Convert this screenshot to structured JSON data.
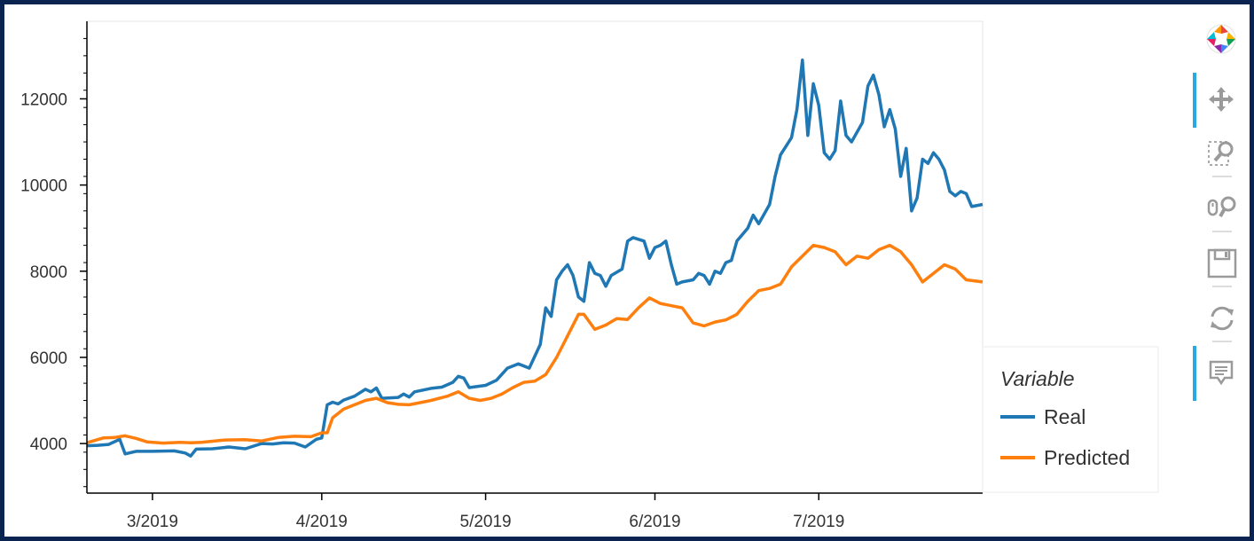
{
  "chart_data": {
    "type": "line",
    "x_dates": [
      "2019-02-17",
      "2019-07-31"
    ],
    "xticks": [
      {
        "date": "2019-03-01",
        "label": "3/2019"
      },
      {
        "date": "2019-04-01",
        "label": "4/2019"
      },
      {
        "date": "2019-05-01",
        "label": "5/2019"
      },
      {
        "date": "2019-06-01",
        "label": "6/2019"
      },
      {
        "date": "2019-07-01",
        "label": "7/2019"
      }
    ],
    "yticks": [
      4000,
      6000,
      8000,
      10000,
      12000
    ],
    "ylim": [
      2850,
      13800
    ],
    "grid": false,
    "legend": {
      "title": "Variable",
      "placement": "bottom-right-outside"
    },
    "series": [
      {
        "name": "Real",
        "color": "#1f77b4",
        "points": [
          [
            "2019-02-17",
            3950
          ],
          [
            "2019-02-19",
            3960
          ],
          [
            "2019-02-21",
            3980
          ],
          [
            "2019-02-23",
            4100
          ],
          [
            "2019-02-24",
            3760
          ],
          [
            "2019-02-26",
            3820
          ],
          [
            "2019-03-01",
            3820
          ],
          [
            "2019-03-05",
            3830
          ],
          [
            "2019-03-07",
            3780
          ],
          [
            "2019-03-08",
            3710
          ],
          [
            "2019-03-09",
            3870
          ],
          [
            "2019-03-12",
            3880
          ],
          [
            "2019-03-15",
            3920
          ],
          [
            "2019-03-18",
            3880
          ],
          [
            "2019-03-21",
            4000
          ],
          [
            "2019-03-23",
            3990
          ],
          [
            "2019-03-25",
            4020
          ],
          [
            "2019-03-27",
            4010
          ],
          [
            "2019-03-29",
            3920
          ],
          [
            "2019-03-31",
            4100
          ],
          [
            "2019-04-01",
            4130
          ],
          [
            "2019-04-02",
            4900
          ],
          [
            "2019-04-03",
            4960
          ],
          [
            "2019-04-04",
            4920
          ],
          [
            "2019-04-05",
            5010
          ],
          [
            "2019-04-07",
            5100
          ],
          [
            "2019-04-09",
            5260
          ],
          [
            "2019-04-10",
            5200
          ],
          [
            "2019-04-11",
            5290
          ],
          [
            "2019-04-12",
            5050
          ],
          [
            "2019-04-15",
            5070
          ],
          [
            "2019-04-16",
            5150
          ],
          [
            "2019-04-17",
            5080
          ],
          [
            "2019-04-18",
            5200
          ],
          [
            "2019-04-21",
            5280
          ],
          [
            "2019-04-23",
            5310
          ],
          [
            "2019-04-25",
            5420
          ],
          [
            "2019-04-26",
            5560
          ],
          [
            "2019-04-27",
            5520
          ],
          [
            "2019-04-28",
            5300
          ],
          [
            "2019-05-01",
            5350
          ],
          [
            "2019-05-03",
            5470
          ],
          [
            "2019-05-05",
            5750
          ],
          [
            "2019-05-07",
            5850
          ],
          [
            "2019-05-09",
            5750
          ],
          [
            "2019-05-11",
            6300
          ],
          [
            "2019-05-12",
            7150
          ],
          [
            "2019-05-13",
            6950
          ],
          [
            "2019-05-14",
            7800
          ],
          [
            "2019-05-15",
            8000
          ],
          [
            "2019-05-16",
            8150
          ],
          [
            "2019-05-17",
            7900
          ],
          [
            "2019-05-18",
            7400
          ],
          [
            "2019-05-19",
            7300
          ],
          [
            "2019-05-20",
            8200
          ],
          [
            "2019-05-21",
            7950
          ],
          [
            "2019-05-22",
            7900
          ],
          [
            "2019-05-23",
            7650
          ],
          [
            "2019-05-24",
            7900
          ],
          [
            "2019-05-26",
            8050
          ],
          [
            "2019-05-27",
            8700
          ],
          [
            "2019-05-28",
            8780
          ],
          [
            "2019-05-30",
            8700
          ],
          [
            "2019-05-31",
            8300
          ],
          [
            "2019-06-01",
            8550
          ],
          [
            "2019-06-02",
            8600
          ],
          [
            "2019-06-03",
            8700
          ],
          [
            "2019-06-04",
            8150
          ],
          [
            "2019-06-05",
            7700
          ],
          [
            "2019-06-06",
            7750
          ],
          [
            "2019-06-08",
            7800
          ],
          [
            "2019-06-09",
            7950
          ],
          [
            "2019-06-10",
            7900
          ],
          [
            "2019-06-11",
            7700
          ],
          [
            "2019-06-12",
            8000
          ],
          [
            "2019-06-13",
            7950
          ],
          [
            "2019-06-14",
            8200
          ],
          [
            "2019-06-15",
            8250
          ],
          [
            "2019-06-16",
            8700
          ],
          [
            "2019-06-18",
            9000
          ],
          [
            "2019-06-19",
            9300
          ],
          [
            "2019-06-20",
            9100
          ],
          [
            "2019-06-22",
            9550
          ],
          [
            "2019-06-23",
            10200
          ],
          [
            "2019-06-24",
            10700
          ],
          [
            "2019-06-26",
            11100
          ],
          [
            "2019-06-27",
            11750
          ],
          [
            "2019-06-28",
            12900
          ],
          [
            "2019-06-29",
            11150
          ],
          [
            "2019-06-30",
            12350
          ],
          [
            "2019-07-01",
            11850
          ],
          [
            "2019-07-02",
            10750
          ],
          [
            "2019-07-03",
            10600
          ],
          [
            "2019-07-04",
            10800
          ],
          [
            "2019-07-05",
            11950
          ],
          [
            "2019-07-06",
            11150
          ],
          [
            "2019-07-07",
            11000
          ],
          [
            "2019-07-09",
            11450
          ],
          [
            "2019-07-10",
            12300
          ],
          [
            "2019-07-11",
            12550
          ],
          [
            "2019-07-12",
            12100
          ],
          [
            "2019-07-13",
            11350
          ],
          [
            "2019-07-14",
            11750
          ],
          [
            "2019-07-15",
            11300
          ],
          [
            "2019-07-16",
            10200
          ],
          [
            "2019-07-17",
            10850
          ],
          [
            "2019-07-18",
            9400
          ],
          [
            "2019-07-19",
            9700
          ],
          [
            "2019-07-20",
            10600
          ],
          [
            "2019-07-21",
            10500
          ],
          [
            "2019-07-22",
            10750
          ],
          [
            "2019-07-23",
            10600
          ],
          [
            "2019-07-24",
            10350
          ],
          [
            "2019-07-25",
            9850
          ],
          [
            "2019-07-26",
            9750
          ],
          [
            "2019-07-27",
            9850
          ],
          [
            "2019-07-28",
            9800
          ],
          [
            "2019-07-29",
            9500
          ],
          [
            "2019-07-31",
            9550
          ]
        ]
      },
      {
        "name": "Predicted",
        "color": "#ff7f0e",
        "points": [
          [
            "2019-02-17",
            4020
          ],
          [
            "2019-02-20",
            4130
          ],
          [
            "2019-02-22",
            4140
          ],
          [
            "2019-02-24",
            4180
          ],
          [
            "2019-02-26",
            4120
          ],
          [
            "2019-02-28",
            4040
          ],
          [
            "2019-03-03",
            4010
          ],
          [
            "2019-03-06",
            4030
          ],
          [
            "2019-03-08",
            4020
          ],
          [
            "2019-03-10",
            4030
          ],
          [
            "2019-03-14",
            4080
          ],
          [
            "2019-03-18",
            4090
          ],
          [
            "2019-03-21",
            4060
          ],
          [
            "2019-03-24",
            4140
          ],
          [
            "2019-03-27",
            4170
          ],
          [
            "2019-03-30",
            4160
          ],
          [
            "2019-04-01",
            4250
          ],
          [
            "2019-04-02",
            4250
          ],
          [
            "2019-04-03",
            4600
          ],
          [
            "2019-04-05",
            4800
          ],
          [
            "2019-04-07",
            4900
          ],
          [
            "2019-04-09",
            5000
          ],
          [
            "2019-04-11",
            5050
          ],
          [
            "2019-04-13",
            4950
          ],
          [
            "2019-04-15",
            4910
          ],
          [
            "2019-04-17",
            4900
          ],
          [
            "2019-04-19",
            4950
          ],
          [
            "2019-04-21",
            5000
          ],
          [
            "2019-04-24",
            5100
          ],
          [
            "2019-04-26",
            5200
          ],
          [
            "2019-04-28",
            5050
          ],
          [
            "2019-04-30",
            5000
          ],
          [
            "2019-05-02",
            5050
          ],
          [
            "2019-05-04",
            5150
          ],
          [
            "2019-05-06",
            5300
          ],
          [
            "2019-05-08",
            5420
          ],
          [
            "2019-05-10",
            5450
          ],
          [
            "2019-05-12",
            5600
          ],
          [
            "2019-05-14",
            6000
          ],
          [
            "2019-05-16",
            6500
          ],
          [
            "2019-05-18",
            7000
          ],
          [
            "2019-05-19",
            7000
          ],
          [
            "2019-05-21",
            6650
          ],
          [
            "2019-05-23",
            6750
          ],
          [
            "2019-05-25",
            6900
          ],
          [
            "2019-05-27",
            6880
          ],
          [
            "2019-05-29",
            7150
          ],
          [
            "2019-05-31",
            7380
          ],
          [
            "2019-06-02",
            7250
          ],
          [
            "2019-06-04",
            7200
          ],
          [
            "2019-06-06",
            7150
          ],
          [
            "2019-06-08",
            6800
          ],
          [
            "2019-06-10",
            6730
          ],
          [
            "2019-06-12",
            6820
          ],
          [
            "2019-06-14",
            6870
          ],
          [
            "2019-06-16",
            7000
          ],
          [
            "2019-06-18",
            7300
          ],
          [
            "2019-06-20",
            7550
          ],
          [
            "2019-06-22",
            7600
          ],
          [
            "2019-06-24",
            7700
          ],
          [
            "2019-06-26",
            8100
          ],
          [
            "2019-06-28",
            8350
          ],
          [
            "2019-06-30",
            8600
          ],
          [
            "2019-07-02",
            8550
          ],
          [
            "2019-07-04",
            8450
          ],
          [
            "2019-07-06",
            8150
          ],
          [
            "2019-07-08",
            8350
          ],
          [
            "2019-07-10",
            8300
          ],
          [
            "2019-07-12",
            8500
          ],
          [
            "2019-07-14",
            8600
          ],
          [
            "2019-07-16",
            8450
          ],
          [
            "2019-07-18",
            8150
          ],
          [
            "2019-07-20",
            7750
          ],
          [
            "2019-07-22",
            7950
          ],
          [
            "2019-07-24",
            8150
          ],
          [
            "2019-07-26",
            8050
          ],
          [
            "2019-07-28",
            7800
          ],
          [
            "2019-07-31",
            7750
          ]
        ]
      }
    ]
  },
  "toolbar": {
    "tools": [
      {
        "name": "pan",
        "icon": "move-icon",
        "active": true
      },
      {
        "name": "box-zoom",
        "icon": "box-zoom-icon",
        "active": false
      },
      {
        "name": "wheel-zoom",
        "icon": "wheel-zoom-icon",
        "active": false
      },
      {
        "name": "save",
        "icon": "save-icon",
        "active": false
      },
      {
        "name": "reset",
        "icon": "reset-icon",
        "active": false
      },
      {
        "name": "hover",
        "icon": "hover-icon",
        "active": true
      }
    ]
  }
}
